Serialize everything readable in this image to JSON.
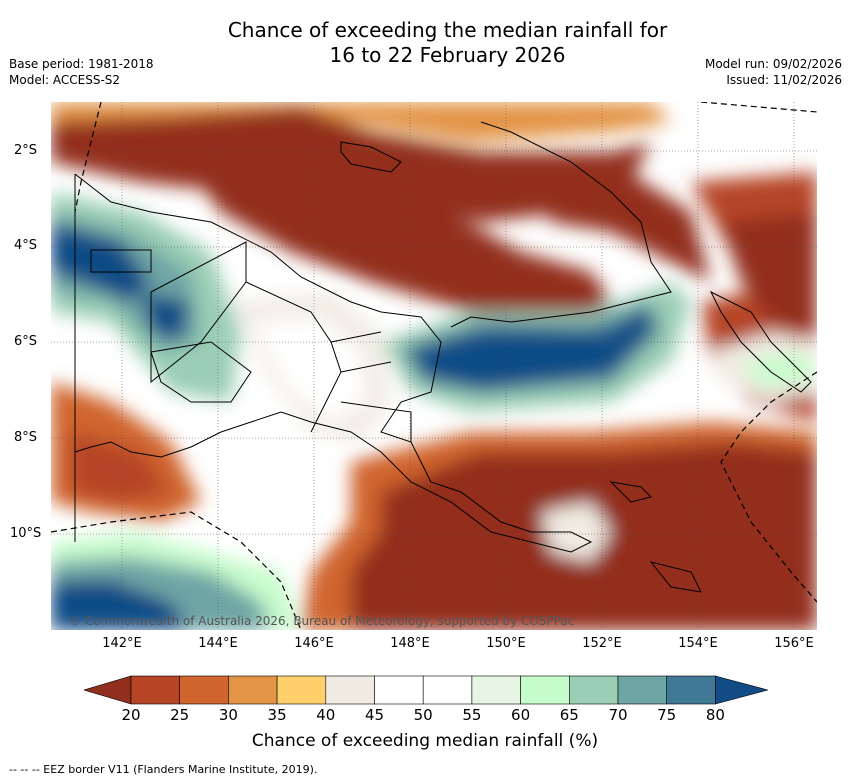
{
  "title": {
    "line1": "Chance of exceeding the median rainfall for",
    "line2": "16 to 22 February 2026"
  },
  "meta_left": {
    "base_period": "Base period: 1981-2018",
    "model": "Model: ACCESS-S2"
  },
  "meta_right": {
    "model_run": "Model run: 09/02/2026",
    "issued": "Issued: 11/02/2026"
  },
  "map": {
    "lat_labels": [
      "2°S",
      "4°S",
      "6°S",
      "8°S",
      "10°S"
    ],
    "lon_labels": [
      "142°E",
      "144°E",
      "146°E",
      "148°E",
      "150°E",
      "152°E",
      "154°E",
      "156°E"
    ],
    "copyright": "© Commonwealth of Australia 2026, Bureau of Meteorology, supported by COSPPac"
  },
  "colorbar": {
    "ticks": [
      "20",
      "25",
      "30",
      "35",
      "40",
      "45",
      "50",
      "55",
      "60",
      "65",
      "70",
      "75",
      "80"
    ],
    "colors": [
      "#932f1f",
      "#b54525",
      "#d0652d",
      "#e39447",
      "#fed06c",
      "#f1ece3",
      "#ffffff",
      "#ffffff",
      "#e7f5e4",
      "#c7fccc",
      "#9bcfb5",
      "#6ea6a5",
      "#3f7995",
      "#114c86"
    ],
    "label": "Chance of exceeding median rainfall (%)"
  },
  "legend": "--  --  -- EEZ border V11 (Flanders Marine Institute, 2019)."
}
